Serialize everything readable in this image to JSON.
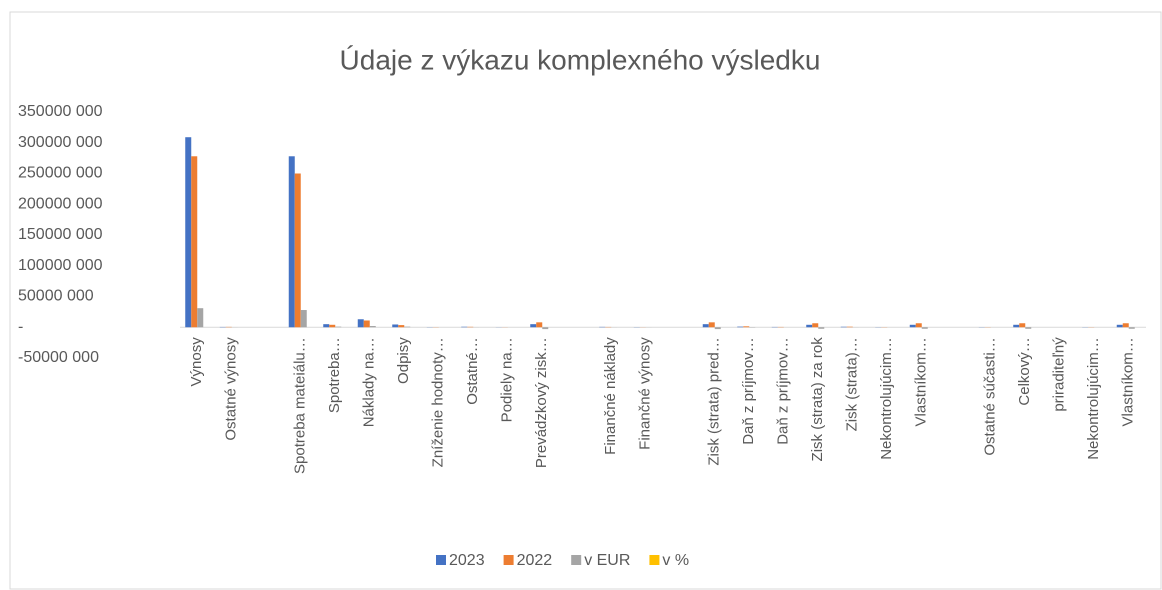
{
  "chart_data": {
    "type": "bar",
    "title": "Údaje z výkazu komplexného výsledku",
    "categories": [
      "Výnosy",
      "Ostatné výnosy",
      null,
      "Spotreba mateiálu…",
      "Spotreba…",
      "Náklady na…",
      "Odpisy",
      "Zníženie hodnoty…",
      "Ostatné…",
      "Podiely na…",
      "Prevádzkový zisk…",
      null,
      "Finančné náklady",
      "Finančné výnosy",
      null,
      "Zisk (strata) pred…",
      "Daň z príjmov…",
      "Daň z príjmov…",
      "Zisk (strata) za rok",
      "Zisk (strata)…",
      "Nekontrolujúcim…",
      "Vlastníkom…",
      null,
      "Ostatné súčasti…",
      "Celkový…",
      "priraditeľný",
      "Nekontrolujúcim…",
      "Vlastníkom…"
    ],
    "series": [
      {
        "name": "2023",
        "color": "#4472c4",
        "values": [
          309000000,
          500000,
          0,
          278000000,
          5000000,
          13000000,
          4500000,
          300000,
          800000,
          200000,
          5000000,
          0,
          600000,
          300000,
          0,
          5000000,
          1000000,
          500000,
          4000000,
          800000,
          300000,
          4000000,
          0,
          300000,
          4000000,
          0,
          300000,
          4000000
        ]
      },
      {
        "name": "2022",
        "color": "#ed7d31",
        "values": [
          278000000,
          600000,
          0,
          250000000,
          4000000,
          11000000,
          3500000,
          300000,
          700000,
          200000,
          8000000,
          0,
          500000,
          200000,
          0,
          8000000,
          1500000,
          500000,
          6500000,
          900000,
          300000,
          6500000,
          0,
          300000,
          6500000,
          0,
          300000,
          6500000
        ]
      },
      {
        "name": "v EUR",
        "color": "#a5a5a5",
        "values": [
          31000000,
          -100000,
          0,
          28000000,
          1000000,
          2000000,
          1000000,
          0,
          100000,
          0,
          -3000000,
          0,
          100000,
          100000,
          0,
          -3000000,
          -500000,
          0,
          -2500000,
          -100000,
          0,
          -2500000,
          0,
          0,
          -2500000,
          0,
          0,
          -2500000
        ]
      },
      {
        "name": "v %",
        "color": "#ffc000",
        "values": [
          0,
          0,
          0,
          0,
          0,
          0,
          0,
          0,
          0,
          0,
          0,
          0,
          0,
          0,
          0,
          0,
          0,
          0,
          0,
          0,
          0,
          0,
          0,
          0,
          0,
          0,
          0,
          0
        ]
      }
    ],
    "ylim": [
      -50000000,
      350000000
    ],
    "yticks": [
      {
        "value": -50000000,
        "label": "-50000 000"
      },
      {
        "value": 0,
        "label": "-"
      },
      {
        "value": 50000000,
        "label": "50000 000"
      },
      {
        "value": 100000000,
        "label": "100000 000"
      },
      {
        "value": 150000000,
        "label": "150000 000"
      },
      {
        "value": 200000000,
        "label": "200000 000"
      },
      {
        "value": 250000000,
        "label": "250000 000"
      },
      {
        "value": 300000000,
        "label": "300000 000"
      },
      {
        "value": 350000000,
        "label": "350000 000"
      }
    ],
    "legend": "bottom"
  }
}
